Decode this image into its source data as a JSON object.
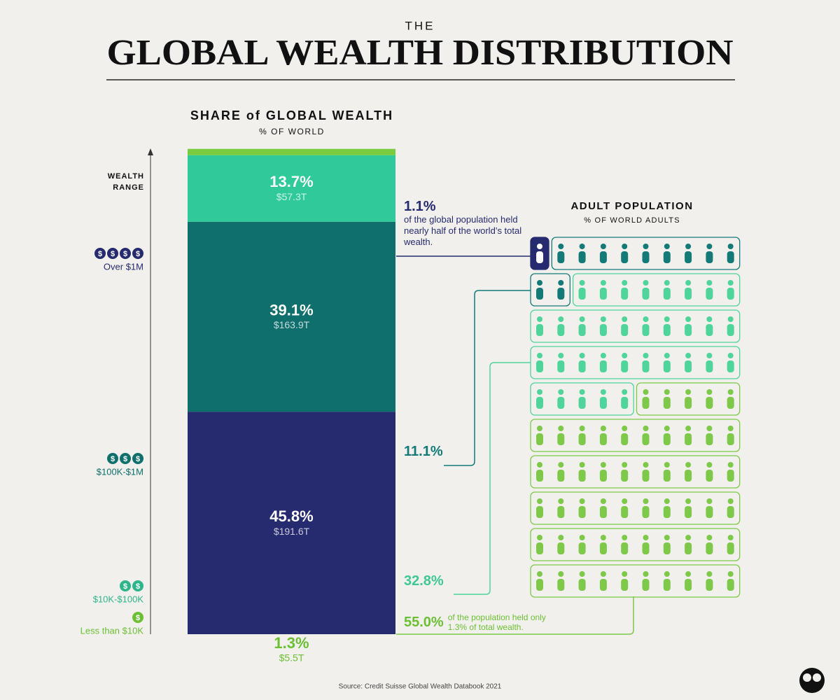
{
  "header": {
    "kicker": "THE",
    "title": "GLOBAL WEALTH DISTRIBUTION"
  },
  "chart_data": [
    {
      "type": "stacked-bar",
      "title": "SHARE of GLOBAL WEALTH",
      "subtitle": "% OF WORLD",
      "y_label": "WEALTH RANGE",
      "categories": [
        "Over $1M",
        "$100K-$1M",
        "$10K-$100K",
        "Less than $10K"
      ],
      "icon_symbol": "$",
      "icon_counts": [
        4,
        3,
        2,
        1
      ],
      "values": [
        45.8,
        39.1,
        13.7,
        1.3
      ],
      "value_labels": [
        "45.8%",
        "39.1%",
        "13.7%",
        "1.3%"
      ],
      "amount_labels": [
        "$191.6T",
        "$163.9T",
        "$57.3T",
        "$5.5T"
      ],
      "colors": [
        "#262a6e",
        "#0f6f6c",
        "#2fc99a",
        "#79cc3f"
      ],
      "ylim": [
        0,
        100
      ]
    },
    {
      "type": "waffle",
      "title": "ADULT POPULATION",
      "subtitle": "% OF WORLD ADULTS",
      "values": [
        1.1,
        11.1,
        32.8,
        55.0
      ],
      "value_labels": [
        "1.1%",
        "11.1%",
        "32.8%",
        "55.0%"
      ],
      "icon_counts": [
        1,
        11,
        33,
        55
      ],
      "colors": [
        "#262a6e",
        "#137a78",
        "#4fd49c",
        "#7ec84a"
      ],
      "annotations": [
        "of the global population held nearly half of the world’s total wealth.",
        "of the population held only 1.3% of total wealth."
      ]
    }
  ],
  "source": "Source: Credit Suisse Global Wealth Databook 2021"
}
